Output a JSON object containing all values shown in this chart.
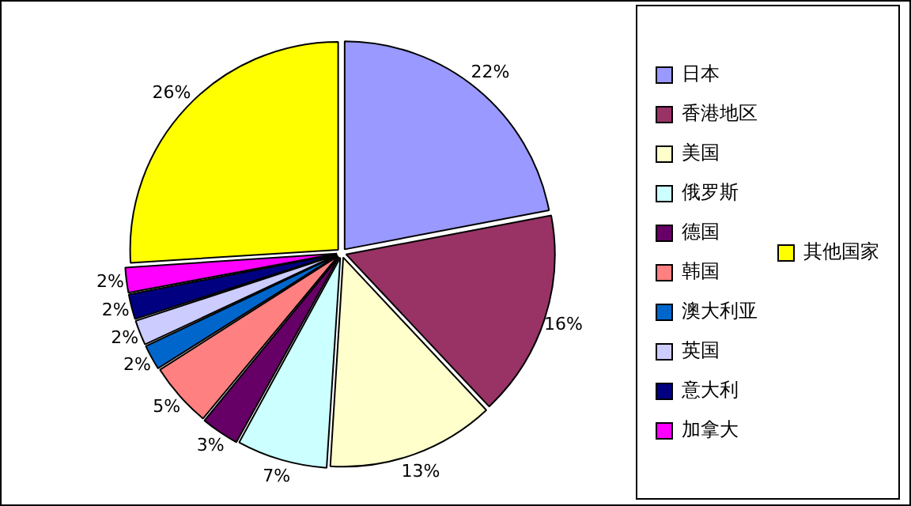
{
  "chart_data": {
    "type": "pie",
    "categories": [
      "日本",
      "香港地区",
      "美国",
      "俄罗斯",
      "德国",
      "韩国",
      "澳大利亚",
      "英国",
      "意大利",
      "加拿大",
      "其他国家"
    ],
    "values": [
      22,
      16,
      13,
      7,
      3,
      5,
      2,
      2,
      2,
      2,
      26
    ],
    "colors": [
      "#9999ff",
      "#993366",
      "#ffffcc",
      "#ccffff",
      "#660066",
      "#ff8080",
      "#0066cc",
      "#ccccff",
      "#000080",
      "#ff00ff",
      "#ffff00"
    ],
    "value_labels": [
      "22%",
      "16%",
      "13%",
      "7%",
      "3%",
      "5%",
      "2%",
      "2%",
      "2%",
      "2%",
      "26%"
    ],
    "legend": "right"
  }
}
